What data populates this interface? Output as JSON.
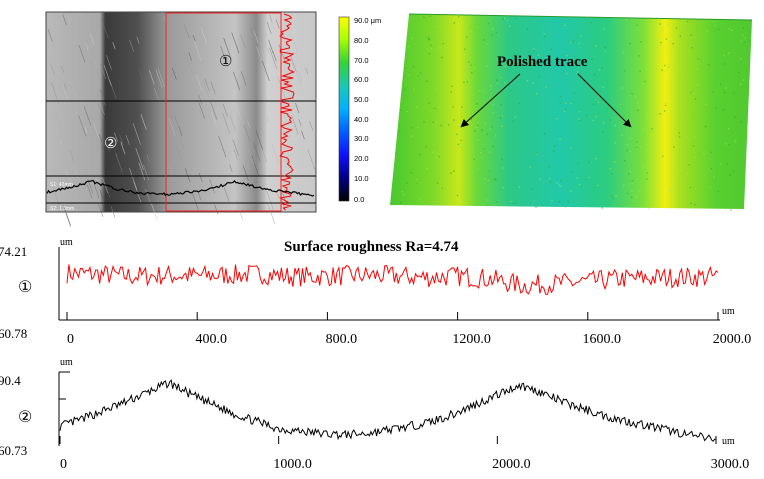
{
  "micrograph": {
    "region_labels": [
      "①",
      "②"
    ],
    "scale_labels": [
      "S1: 43mm",
      "S2: 1.3mm"
    ]
  },
  "colorbar": {
    "ticks": [
      "90.0 μm",
      "80.0",
      "70.0",
      "60.0",
      "50.0",
      "40.0",
      "30.0",
      "20.0",
      "10.0",
      "0.0"
    ],
    "colors": [
      "#ffff00",
      "#a8ff00",
      "#35d03a",
      "#19c8b8",
      "#00b0ff",
      "#0060ff",
      "#1010ff",
      "#00008a",
      "#000040",
      "#000000"
    ]
  },
  "surface3d": {
    "annotation": "Polished trace",
    "base_color": "#33cc33",
    "highlight_color": "#ffee00",
    "valley_color": "#22c8a0"
  },
  "chart_data": [
    {
      "type": "line",
      "title": "Surface roughness Ra=4.74",
      "series_label": "①",
      "y_unit": "um",
      "x_unit": "um",
      "y_top_label": "74.21",
      "y_bottom_label": "60.78",
      "ylim": [
        60.78,
        74.21
      ],
      "xlim": [
        0,
        2000
      ],
      "x_ticks": [
        0,
        400,
        800,
        1200,
        1600,
        2000
      ],
      "x_tick_labels": [
        "0",
        "400.0",
        "800.0",
        "1200.0",
        "1600.0",
        "2000.0"
      ],
      "color": "#ff0000",
      "x": [
        0,
        100,
        200,
        300,
        400,
        500,
        600,
        700,
        800,
        900,
        1000,
        1100,
        1200,
        1300,
        1400,
        1500,
        1600,
        1700,
        1800,
        1900,
        2000
      ],
      "y": [
        69.5,
        69.2,
        68.8,
        69.0,
        68.9,
        69.1,
        69.3,
        68.7,
        68.8,
        69.0,
        68.9,
        68.5,
        68.8,
        68.2,
        66.7,
        67.1,
        67.6,
        68.2,
        68.4,
        68.6,
        68.7
      ]
    },
    {
      "type": "line",
      "title": "",
      "series_label": "②",
      "y_unit": "um",
      "x_unit": "um",
      "y_top_label": "90.4",
      "y_bottom_label": "60.73",
      "ylim": [
        60.73,
        90.4
      ],
      "xlim": [
        0,
        3000
      ],
      "x_ticks": [
        0,
        1000,
        2000,
        3000
      ],
      "x_tick_labels": [
        "0",
        "1000.0",
        "2000.0",
        "3000.0"
      ],
      "color": "#000000",
      "x": [
        0,
        100,
        200,
        300,
        400,
        500,
        600,
        700,
        800,
        900,
        1000,
        1100,
        1200,
        1300,
        1400,
        1500,
        1600,
        1700,
        1800,
        1900,
        2000,
        2100,
        2200,
        2300,
        2400,
        2500,
        2600,
        2700,
        2800,
        2900,
        3000
      ],
      "y": [
        68,
        71,
        74.5,
        78,
        82,
        86,
        81,
        77,
        73,
        70,
        67,
        66,
        65,
        64.5,
        65,
        66.5,
        68,
        70,
        73,
        77,
        81,
        85,
        82,
        78,
        75,
        72,
        70,
        68,
        66,
        64,
        62.5
      ]
    }
  ]
}
